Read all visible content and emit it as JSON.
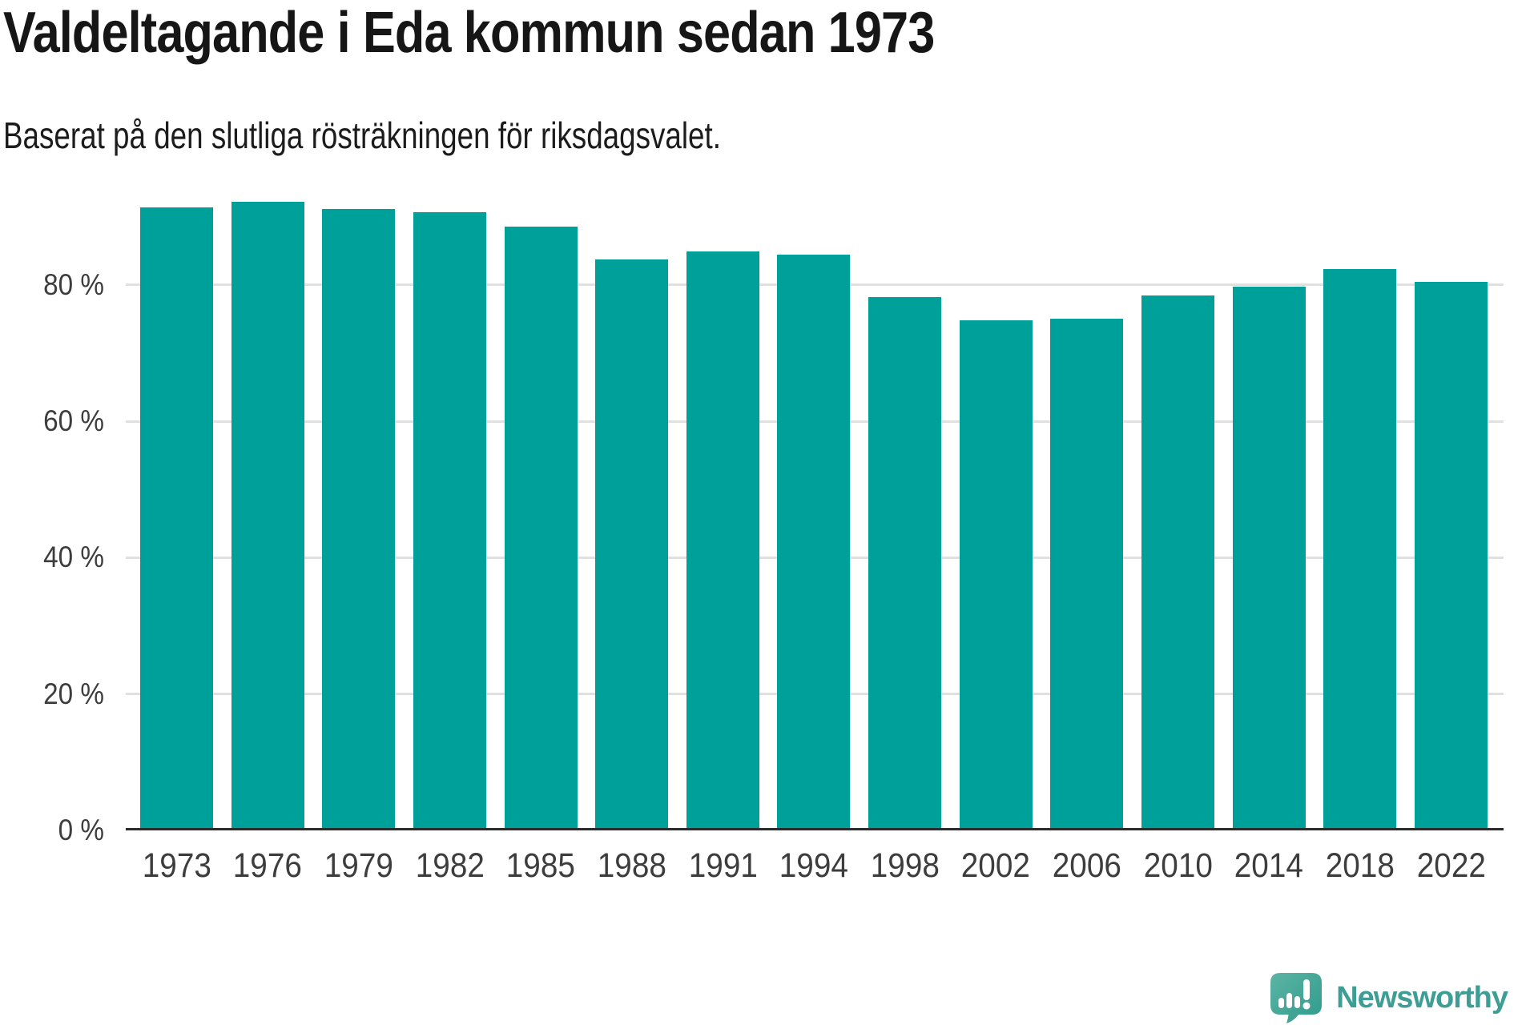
{
  "title": "Valdeltagande i Eda kommun sedan 1973",
  "subtitle": "Baserat på den slutliga rösträkningen för riksdagsvalet.",
  "chart_data": {
    "type": "bar",
    "title": "Valdeltagande i Eda kommun sedan 1973",
    "subtitle": "Baserat på den slutliga rösträkningen för riksdagsvalet.",
    "categories": [
      "1973",
      "1976",
      "1979",
      "1982",
      "1985",
      "1988",
      "1991",
      "1994",
      "1998",
      "2002",
      "2006",
      "2010",
      "2014",
      "2018",
      "2022"
    ],
    "values": [
      91.4,
      92.2,
      91.1,
      90.7,
      88.5,
      83.7,
      84.9,
      84.4,
      78.2,
      74.8,
      75.1,
      78.5,
      79.7,
      82.3,
      80.4
    ],
    "unit": "%",
    "xlabel": "",
    "ylabel": "",
    "ylim": [
      0,
      100
    ],
    "yticks": [
      0,
      20,
      40,
      60,
      80
    ],
    "ytick_suffix": " %",
    "grid": "horizontal",
    "legend": "none"
  },
  "colors": {
    "bar": "#00A09A",
    "gridline": "#E0E0E0",
    "axis": "#2B2B2B",
    "title_text": "#161616",
    "subtitle_text": "#1C1C1C",
    "tick_text": "#3D3D3D",
    "logo": "#3E9D94"
  },
  "branding": {
    "logo_text": "Newsworthy",
    "logo_icon": "newsworthy-speech-bubble-bar-chart-icon"
  }
}
